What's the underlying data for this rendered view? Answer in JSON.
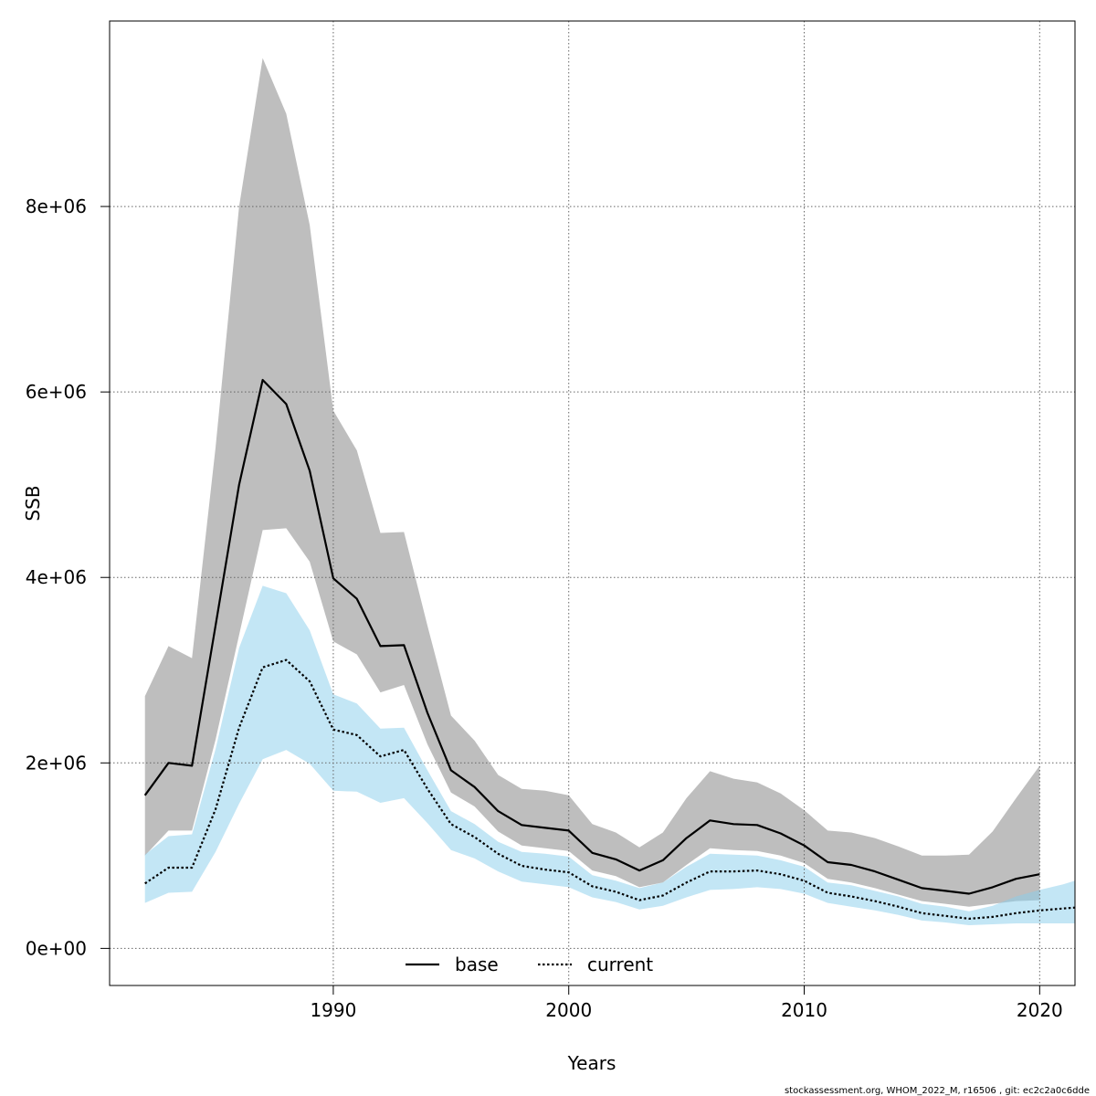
{
  "chart_data": {
    "type": "line",
    "title": "",
    "xlabel": "Years",
    "ylabel": "SSB",
    "xlim": [
      1980.5,
      2021.5
    ],
    "ylim": [
      -400000,
      10000000
    ],
    "x_ticks": [
      1990,
      2000,
      2010,
      2020
    ],
    "x_tick_labels": [
      "1990",
      "2000",
      "2010",
      "2020"
    ],
    "y_ticks": [
      0,
      2000000,
      4000000,
      6000000,
      8000000
    ],
    "y_tick_labels": [
      "0e+00",
      "2e+06",
      "4e+06",
      "6e+06",
      "8e+06"
    ],
    "grid": true,
    "legend_position": "bottom-center",
    "series": [
      {
        "name": "base",
        "color": "#000000",
        "line_style": "solid",
        "band_color": "#bebebe",
        "x": [
          1982,
          1983,
          1984,
          1985,
          1986,
          1987,
          1988,
          1989,
          1990,
          1991,
          1992,
          1993,
          1994,
          1995,
          1996,
          1997,
          1998,
          1999,
          2000,
          2001,
          2002,
          2003,
          2004,
          2005,
          2006,
          2007,
          2008,
          2009,
          2010,
          2011,
          2012,
          2013,
          2014,
          2015,
          2016,
          2017,
          2018,
          2019,
          2020
        ],
        "values": [
          1650000,
          2000000,
          1970000,
          3480000,
          5000000,
          6130000,
          5870000,
          5150000,
          3990000,
          3770000,
          3260000,
          3270000,
          2540000,
          1920000,
          1740000,
          1480000,
          1330000,
          1300000,
          1270000,
          1030000,
          960000,
          840000,
          950000,
          1190000,
          1380000,
          1340000,
          1330000,
          1240000,
          1110000,
          930000,
          900000,
          830000,
          740000,
          650000,
          620000,
          590000,
          660000,
          750000,
          800000
        ],
        "lower": [
          1000000,
          1270000,
          1270000,
          2250000,
          3380000,
          4510000,
          4530000,
          4170000,
          3310000,
          3170000,
          2760000,
          2840000,
          2200000,
          1680000,
          1530000,
          1260000,
          1110000,
          1080000,
          1050000,
          840000,
          780000,
          660000,
          710000,
          900000,
          1080000,
          1060000,
          1050000,
          1000000,
          920000,
          750000,
          710000,
          650000,
          580000,
          510000,
          480000,
          450000,
          480000,
          510000,
          520000
        ],
        "upper": [
          2720000,
          3260000,
          3130000,
          5400000,
          8000000,
          9600000,
          9000000,
          7800000,
          5800000,
          5370000,
          4480000,
          4490000,
          3480000,
          2510000,
          2240000,
          1870000,
          1720000,
          1700000,
          1650000,
          1340000,
          1250000,
          1090000,
          1250000,
          1620000,
          1910000,
          1830000,
          1790000,
          1670000,
          1490000,
          1270000,
          1250000,
          1190000,
          1100000,
          1000000,
          1000000,
          1010000,
          1260000,
          1620000,
          1970000
        ]
      },
      {
        "name": "current",
        "color": "#000000",
        "line_style": "dotted",
        "band_color": "#87ceeb",
        "x": [
          1982,
          1983,
          1984,
          1985,
          1986,
          1987,
          1988,
          1989,
          1990,
          1991,
          1992,
          1993,
          1994,
          1995,
          1996,
          1997,
          1998,
          1999,
          2000,
          2001,
          2002,
          2003,
          2004,
          2005,
          2006,
          2007,
          2008,
          2009,
          2010,
          2011,
          2012,
          2013,
          2014,
          2015,
          2016,
          2017,
          2018,
          2019,
          2020,
          2021,
          2022
        ],
        "values": [
          700000,
          870000,
          870000,
          1500000,
          2380000,
          3030000,
          3110000,
          2880000,
          2360000,
          2300000,
          2070000,
          2140000,
          1720000,
          1340000,
          1200000,
          1020000,
          890000,
          850000,
          820000,
          670000,
          610000,
          520000,
          570000,
          710000,
          830000,
          830000,
          840000,
          800000,
          730000,
          600000,
          560000,
          510000,
          450000,
          380000,
          350000,
          320000,
          340000,
          380000,
          410000,
          430000,
          450000
        ],
        "lower": [
          490000,
          600000,
          610000,
          1040000,
          1560000,
          2040000,
          2140000,
          1990000,
          1700000,
          1690000,
          1570000,
          1620000,
          1350000,
          1060000,
          970000,
          830000,
          720000,
          690000,
          660000,
          550000,
          500000,
          420000,
          460000,
          550000,
          630000,
          640000,
          660000,
          640000,
          590000,
          490000,
          450000,
          410000,
          360000,
          300000,
          280000,
          250000,
          260000,
          270000,
          270000,
          270000,
          270000
        ],
        "upper": [
          1010000,
          1210000,
          1230000,
          2150000,
          3240000,
          3910000,
          3830000,
          3430000,
          2740000,
          2640000,
          2370000,
          2380000,
          1920000,
          1480000,
          1340000,
          1150000,
          1040000,
          1020000,
          990000,
          790000,
          730000,
          650000,
          710000,
          880000,
          1020000,
          1010000,
          1000000,
          950000,
          880000,
          710000,
          680000,
          620000,
          560000,
          480000,
          450000,
          400000,
          460000,
          560000,
          630000,
          690000,
          770000
        ]
      }
    ],
    "footer": "stockassessment.org, WHOM_2022_M, r16506 , git: ec2c2a0c6dde"
  }
}
